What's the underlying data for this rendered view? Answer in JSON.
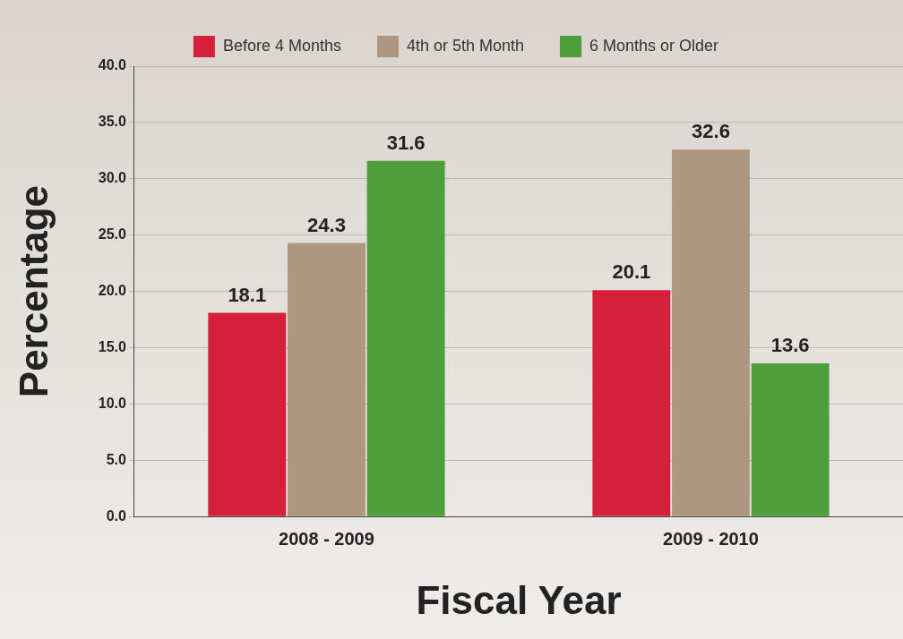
{
  "chart_data": {
    "type": "bar",
    "xlabel": "Fiscal Year",
    "ylabel": "Percentage",
    "categories": [
      "2008 - 2009",
      "2009 - 2010"
    ],
    "series": [
      {
        "name": "Before 4 Months",
        "color": "#d61f3a",
        "values": [
          18.1,
          20.1
        ]
      },
      {
        "name": "4th or 5th Month",
        "color": "#ad9781",
        "values": [
          24.3,
          32.6
        ]
      },
      {
        "name": "6 Months or Older",
        "color": "#4f9e3c",
        "values": [
          31.6,
          13.6
        ]
      }
    ],
    "ylim": [
      0,
      40
    ],
    "yticks": [
      {
        "value": 0,
        "label": "0.0"
      },
      {
        "value": 5,
        "label": "5.0"
      },
      {
        "value": 10,
        "label": "10.0"
      },
      {
        "value": 15,
        "label": "15.0"
      },
      {
        "value": 20,
        "label": "20.0"
      },
      {
        "value": 25,
        "label": "25.0"
      },
      {
        "value": 30,
        "label": "30.0"
      },
      {
        "value": 35,
        "label": "35.0"
      },
      {
        "value": 40,
        "label": "40.0"
      }
    ],
    "grid": "y",
    "legend": "top",
    "data_labels": true
  }
}
